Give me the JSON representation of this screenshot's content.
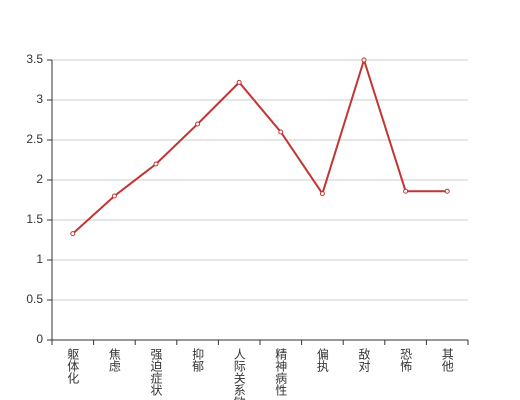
{
  "chart_data": {
    "type": "line",
    "categories": [
      "躯体化",
      "焦虑",
      "强迫症状",
      "抑郁",
      "人际关系敏感",
      "精神病性",
      "偏执",
      "敌对",
      "恐怖",
      "其他"
    ],
    "series": [
      {
        "color": "#c23531",
        "values": [
          1.33,
          1.8,
          2.2,
          2.7,
          3.22,
          2.6,
          1.83,
          3.5,
          1.86,
          1.86
        ]
      }
    ],
    "ylim": [
      0,
      3.5
    ],
    "yticks": [
      0,
      0.5,
      1,
      1.5,
      2,
      2.5,
      3,
      3.5
    ],
    "grid": true
  }
}
